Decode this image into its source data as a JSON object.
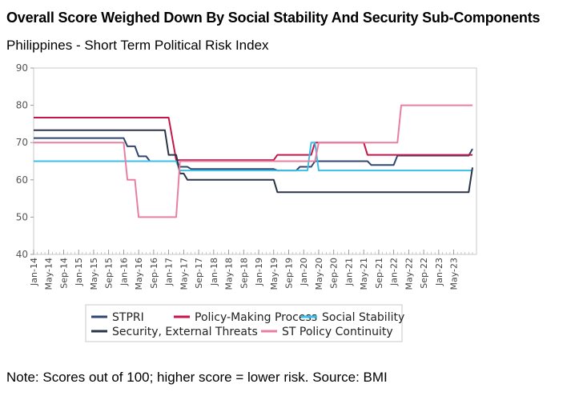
{
  "header": {
    "title": "Overall Score Weighed Down By Social Stability And Security Sub-Components",
    "subtitle": "Philippines - Short Term Political Risk Index"
  },
  "footer": {
    "note": "Note: Scores out of 100; higher score = lower risk. Source: BMI"
  },
  "chart_data": {
    "type": "line",
    "title": "",
    "xlabel": "",
    "ylabel": "",
    "ylim": [
      40,
      90
    ],
    "yticks": [
      40,
      50,
      60,
      70,
      80,
      90
    ],
    "x_range": [
      "2014-01",
      "2023-10"
    ],
    "x_tick_labels": [
      "Jan-14",
      "May-14",
      "Sep-14",
      "Jan-15",
      "May-15",
      "Sep-15",
      "Jan-16",
      "May-16",
      "Sep-16",
      "Jan-17",
      "May-17",
      "Sep-17",
      "Jan-18",
      "May-18",
      "Sep-18",
      "Jan-19",
      "May-19",
      "Sep-19",
      "Jan-20",
      "May-20",
      "Sep-20",
      "Jan-21",
      "May-21",
      "Sep-21",
      "Jan-22",
      "May-22",
      "Sep-22",
      "Jan-23",
      "May-23"
    ],
    "grid": false,
    "legend_position": "bottom",
    "series": [
      {
        "name": "STPRI",
        "color": "#2e4670",
        "points": [
          [
            "2014-01",
            71.2
          ],
          [
            "2016-01",
            71.2
          ],
          [
            "2016-02",
            69
          ],
          [
            "2016-04",
            69
          ],
          [
            "2016-05",
            66.3
          ],
          [
            "2016-07",
            66.3
          ],
          [
            "2016-08",
            65
          ],
          [
            "2017-03",
            65
          ],
          [
            "2017-04",
            63.5
          ],
          [
            "2017-06",
            63.5
          ],
          [
            "2017-07",
            62.9
          ],
          [
            "2019-05",
            62.9
          ],
          [
            "2019-06",
            62.5
          ],
          [
            "2019-11",
            62.5
          ],
          [
            "2019-12",
            63.5
          ],
          [
            "2020-03",
            63.5
          ],
          [
            "2020-04",
            65
          ],
          [
            "2021-06",
            65
          ],
          [
            "2021-07",
            64
          ],
          [
            "2022-01",
            64
          ],
          [
            "2022-02",
            66.5
          ],
          [
            "2023-09",
            66.5
          ],
          [
            "2023-10",
            68.3
          ]
        ]
      },
      {
        "name": "Policy-Making Process",
        "color": "#c4164a",
        "points": [
          [
            "2014-01",
            76.7
          ],
          [
            "2017-01",
            76.7
          ],
          [
            "2017-03",
            65.3
          ],
          [
            "2019-05",
            65.3
          ],
          [
            "2019-06",
            66.7
          ],
          [
            "2020-03",
            66.7
          ],
          [
            "2020-04",
            70
          ],
          [
            "2021-05",
            70
          ],
          [
            "2021-06",
            66.7
          ],
          [
            "2023-10",
            66.7
          ]
        ]
      },
      {
        "name": "Social Stability",
        "color": "#3bbfe8",
        "points": [
          [
            "2014-01",
            65
          ],
          [
            "2017-03",
            65
          ],
          [
            "2017-04",
            62.5
          ],
          [
            "2020-02",
            62.5
          ],
          [
            "2020-03",
            70
          ],
          [
            "2020-04",
            70
          ],
          [
            "2020-05",
            62.5
          ],
          [
            "2023-10",
            62.5
          ]
        ]
      },
      {
        "name": "Security, External Threats",
        "color": "#2b3346",
        "points": [
          [
            "2014-01",
            73.3
          ],
          [
            "2016-12",
            73.3
          ],
          [
            "2017-01",
            66.7
          ],
          [
            "2017-03",
            66.7
          ],
          [
            "2017-04",
            61.7
          ],
          [
            "2017-05",
            61.7
          ],
          [
            "2017-06",
            60
          ],
          [
            "2019-05",
            60
          ],
          [
            "2019-06",
            56.7
          ],
          [
            "2023-09",
            56.7
          ],
          [
            "2023-10",
            63.3
          ]
        ]
      },
      {
        "name": "ST Policy Continuity",
        "color": "#e87fa0",
        "points": [
          [
            "2014-01",
            70
          ],
          [
            "2016-01",
            70
          ],
          [
            "2016-02",
            60
          ],
          [
            "2016-04",
            60
          ],
          [
            "2016-05",
            50
          ],
          [
            "2017-03",
            50
          ],
          [
            "2017-04",
            65
          ],
          [
            "2019-05",
            65
          ],
          [
            "2019-06",
            65
          ],
          [
            "2020-04",
            65
          ],
          [
            "2020-05",
            70
          ],
          [
            "2022-02",
            70
          ],
          [
            "2022-03",
            80
          ],
          [
            "2023-10",
            80
          ]
        ]
      }
    ]
  }
}
